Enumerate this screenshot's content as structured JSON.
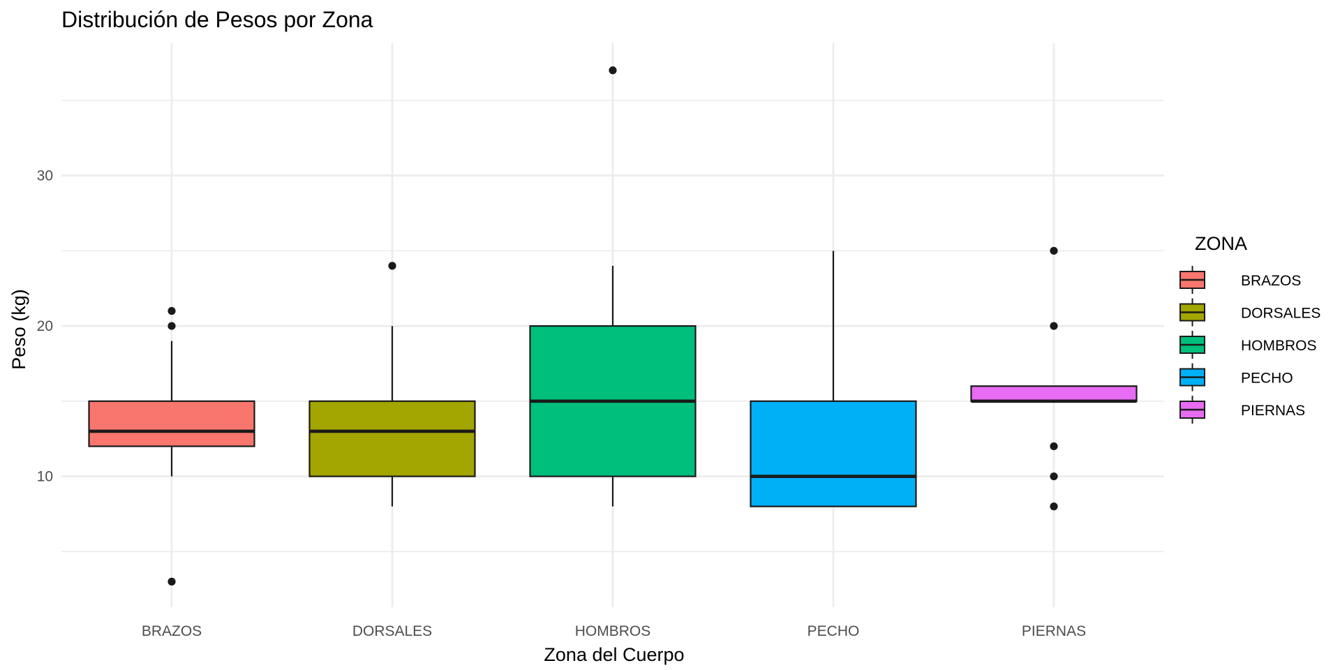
{
  "chart_data": {
    "type": "boxplot",
    "title": "Distribución de Pesos por Zona",
    "xlabel": "Zona del Cuerpo",
    "ylabel": "Peso (kg)",
    "ylim": [
      1.3,
      38.8
    ],
    "yticks": [
      10,
      20,
      30
    ],
    "y_minor_grid": [
      5,
      15,
      25,
      35
    ],
    "grid": true,
    "legend": {
      "title": "ZONA",
      "position": "right"
    },
    "categories": [
      "BRAZOS",
      "DORSALES",
      "HOMBROS",
      "PECHO",
      "PIERNAS"
    ],
    "colors": [
      "#F8766D",
      "#A3A500",
      "#00BF7D",
      "#00B0F6",
      "#E76BF3"
    ],
    "boxes": [
      {
        "category": "BRAZOS",
        "whisker_low": 10,
        "q1": 12,
        "median": 13,
        "q3": 15,
        "whisker_high": 19,
        "outliers": [
          3,
          20,
          21
        ]
      },
      {
        "category": "DORSALES",
        "whisker_low": 8,
        "q1": 10,
        "median": 13,
        "q3": 15,
        "whisker_high": 20,
        "outliers": [
          24
        ]
      },
      {
        "category": "HOMBROS",
        "whisker_low": 8,
        "q1": 10,
        "median": 15,
        "q3": 20,
        "whisker_high": 24,
        "outliers": [
          37
        ]
      },
      {
        "category": "PECHO",
        "whisker_low": 8,
        "q1": 8,
        "median": 10,
        "q3": 15,
        "whisker_high": 25,
        "outliers": []
      },
      {
        "category": "PIERNAS",
        "whisker_low": 15,
        "q1": 15,
        "median": 15,
        "q3": 16,
        "whisker_high": 16,
        "outliers": [
          8,
          10,
          12,
          20,
          25
        ]
      }
    ]
  }
}
